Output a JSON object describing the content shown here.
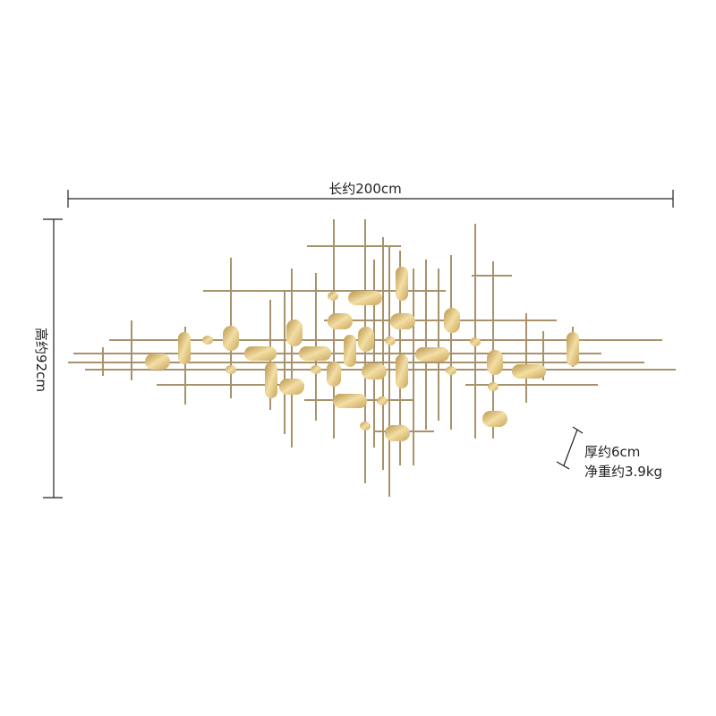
{
  "dimensions": {
    "length": "长约200cm",
    "height": "高约92cm",
    "thickness": "厚约6cm",
    "weight": "净重约3.9kg"
  }
}
